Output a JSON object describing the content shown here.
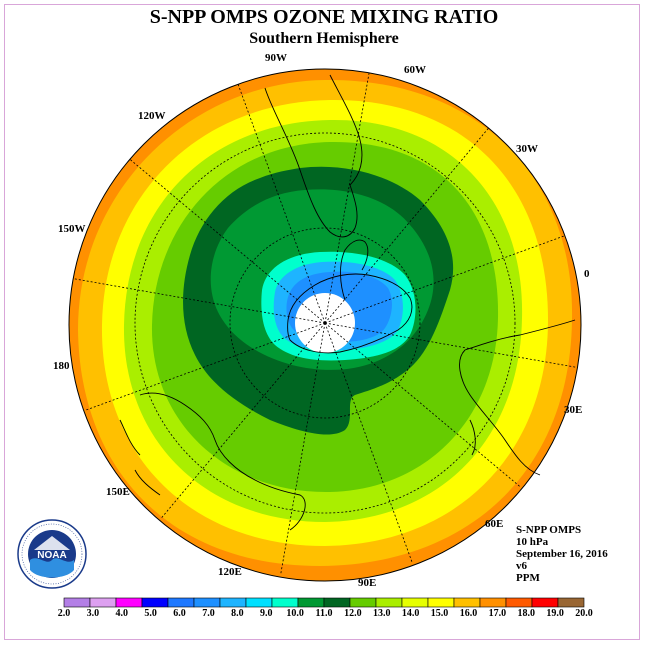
{
  "title": "S-NPP OMPS OZONE MIXING RATIO",
  "subtitle": "Southern Hemisphere",
  "longitude_labels": [
    "90W",
    "60W",
    "30W",
    "0",
    "30E",
    "60E",
    "90E",
    "120E",
    "150E",
    "180",
    "150W",
    "120W"
  ],
  "info": {
    "instrument": "S-NPP OMPS",
    "level": "10 hPa",
    "date": "September 16, 2016",
    "version": "v6",
    "units": "PPM"
  },
  "logo": {
    "text": "NOAA",
    "icon": "noaa-logo-icon",
    "ring_text": "NATIONAL OCEANIC AND ATMOSPHERIC ADMINISTRATION · U.S. DEPARTMENT OF COMMERCE"
  },
  "colorbar": {
    "labels": [
      "2.0",
      "3.0",
      "4.0",
      "5.0",
      "6.0",
      "7.0",
      "8.0",
      "9.0",
      "10.0",
      "11.0",
      "12.0",
      "13.0",
      "14.0",
      "15.0",
      "16.0",
      "17.0",
      "18.0",
      "19.0",
      "20.0"
    ],
    "colors": [
      "#b37fe6",
      "#dda0f0",
      "#ff00ff",
      "#0000ff",
      "#1e78ff",
      "#1e90ff",
      "#1eb4ff",
      "#00e0ff",
      "#00ffcc",
      "#009933",
      "#006622",
      "#66cc00",
      "#aaee00",
      "#e6ff00",
      "#ffff00",
      "#ffc000",
      "#ff9000",
      "#ff5a00",
      "#ff0000",
      "#996633"
    ]
  },
  "field_colors": {
    "c8": "#1e90ff",
    "c9": "#1eb4ff",
    "c10": "#00ffcc",
    "c11": "#009933",
    "c12": "#006622",
    "c13": "#66cc00",
    "c14": "#aaee00",
    "c15": "#ffff00",
    "c16": "#ffc000",
    "c17": "#ff9000",
    "nodata": "#ffffff"
  }
}
